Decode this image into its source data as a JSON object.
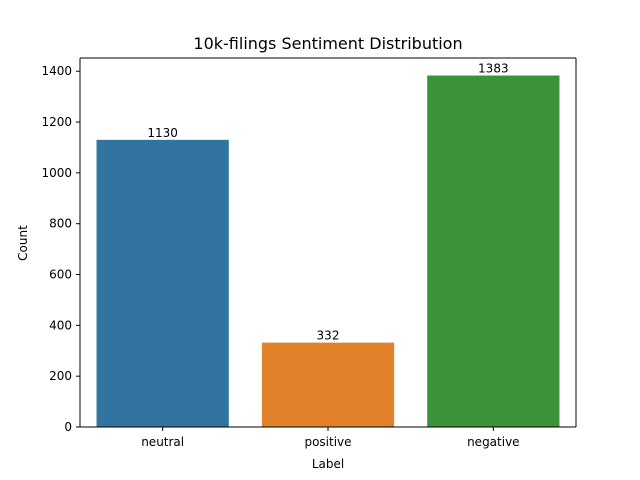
{
  "chart_data": {
    "type": "bar",
    "title": "10k-filings Sentiment Distribution",
    "xlabel": "Label",
    "ylabel": "Count",
    "categories": [
      "neutral",
      "positive",
      "negative"
    ],
    "values": [
      1130,
      332,
      1383
    ],
    "data_labels": [
      "1130",
      "332",
      "1383"
    ],
    "colors": [
      "#3274a1",
      "#e1812c",
      "#3a923a"
    ],
    "ylim": [
      0,
      1452
    ],
    "yticks": [
      0,
      200,
      400,
      600,
      800,
      1000,
      1200,
      1400
    ],
    "ytick_labels": [
      "0",
      "200",
      "400",
      "600",
      "800",
      "1000",
      "1200",
      "1400"
    ],
    "grid": false,
    "legend": "none"
  }
}
